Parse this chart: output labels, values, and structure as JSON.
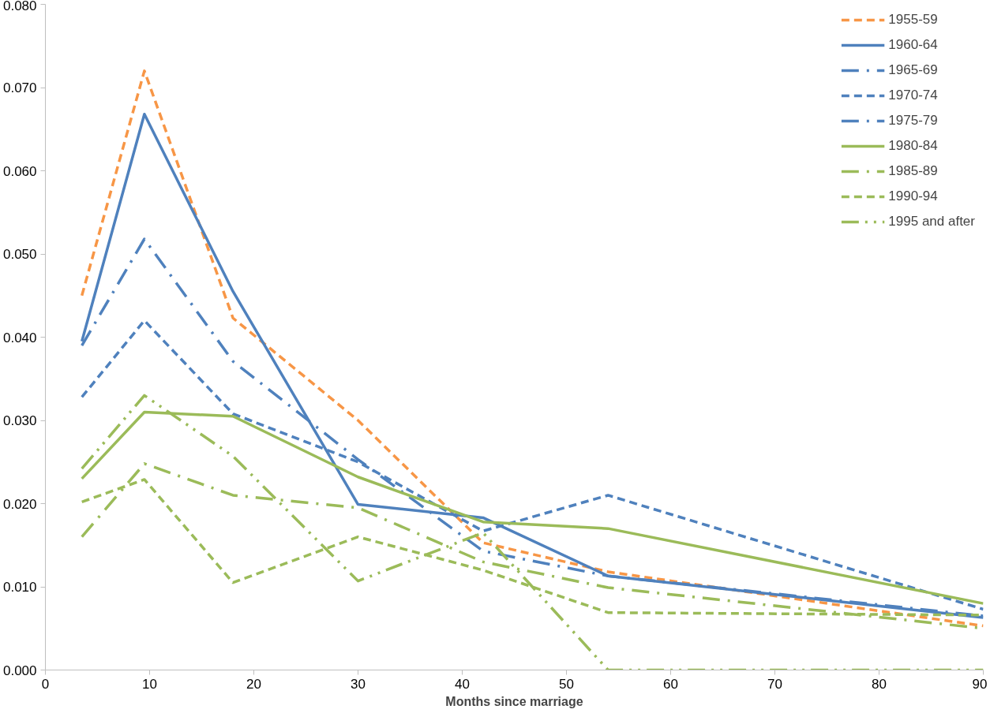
{
  "chart_data": {
    "type": "line",
    "xlabel": "Months since marriage",
    "x": [
      3.5,
      9.5,
      18,
      30,
      42,
      54,
      90
    ],
    "xlim": [
      0,
      90
    ],
    "xticks": [
      0,
      10,
      20,
      30,
      40,
      50,
      60,
      70,
      80,
      90
    ],
    "ylim": [
      0,
      0.08
    ],
    "yticks": [
      {
        "value": 0,
        "label": "0.000"
      },
      {
        "value": 0.01,
        "label": "0.010"
      },
      {
        "value": 0.02,
        "label": "0.020"
      },
      {
        "value": 0.03,
        "label": "0.030"
      },
      {
        "value": 0.04,
        "label": "0.040"
      },
      {
        "value": 0.05,
        "label": "0.050"
      },
      {
        "value": 0.06,
        "label": "0.060"
      },
      {
        "value": 0.07,
        "label": "0.070"
      },
      {
        "value": 0.08,
        "label": "0.080"
      }
    ],
    "grid": false,
    "legend": "top right",
    "marker": "none",
    "series": [
      {
        "name": "1955-59",
        "color": "#f79646",
        "line_style": "dashed",
        "values": [
          0.045,
          0.072,
          0.0423,
          0.03,
          0.0153,
          0.0118,
          0.0053
        ]
      },
      {
        "name": "1960-64",
        "color": "#4f81bd",
        "line_style": "solid",
        "values": [
          0.0395,
          0.0668,
          0.0455,
          0.0199,
          0.0183,
          0.0113,
          0.0063
        ]
      },
      {
        "name": "1965-69",
        "color": "#4f81bd",
        "line_style": "dashdot",
        "values": [
          0.039,
          0.0518,
          0.0371,
          0.0253,
          0.0143,
          0.0113,
          0.0065
        ]
      },
      {
        "name": "1970-74",
        "color": "#4f81bd",
        "line_style": "dashed",
        "values": [
          0.0328,
          0.042,
          0.0308,
          0.025,
          0.0167,
          0.021,
          0.0073
        ]
      },
      {
        "name": "1975-79",
        "color": "#4f81bd",
        "line_style": "dashdot",
        "values": [
          null,
          null,
          null,
          null,
          null,
          null,
          null
        ]
      },
      {
        "name": "1980-84",
        "color": "#9bbb59",
        "line_style": "solid",
        "values": [
          0.023,
          0.031,
          0.0305,
          0.0232,
          0.0178,
          0.017,
          0.008
        ]
      },
      {
        "name": "1985-89",
        "color": "#9bbb59",
        "line_style": "dashdot",
        "values": [
          0.016,
          0.0248,
          0.021,
          0.0195,
          0.013,
          0.0099,
          0.005
        ]
      },
      {
        "name": "1990-94",
        "color": "#9bbb59",
        "line_style": "dashed",
        "values": [
          0.0202,
          0.0229,
          0.0105,
          0.016,
          0.012,
          0.0069,
          0.0066
        ]
      },
      {
        "name": "1995 and after",
        "color": "#9bbb59",
        "line_style": "dashdotdot",
        "values": [
          0.0242,
          0.033,
          0.0257,
          0.0107,
          0.0165,
          0,
          0
        ]
      }
    ]
  }
}
